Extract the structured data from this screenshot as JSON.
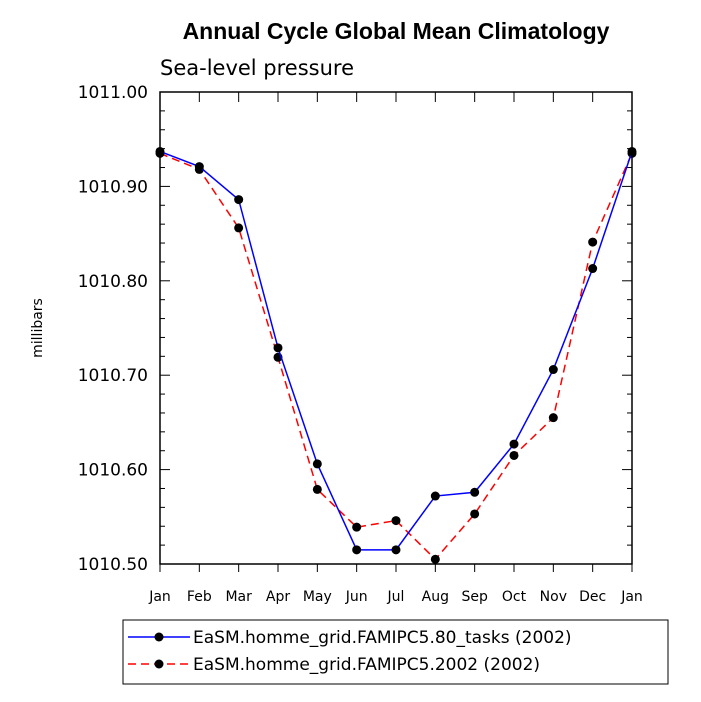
{
  "chart_data": {
    "type": "line",
    "title": "Annual Cycle Global Mean Climatology",
    "subtitle": "Sea-level pressure",
    "xlabel": "",
    "ylabel": "millibars",
    "categories": [
      "Jan",
      "Feb",
      "Mar",
      "Apr",
      "May",
      "Jun",
      "Jul",
      "Aug",
      "Sep",
      "Oct",
      "Nov",
      "Dec",
      "Jan"
    ],
    "ylim": [
      1010.5,
      1011.0
    ],
    "yticks": [
      "1010.50",
      "1010.60",
      "1010.70",
      "1010.80",
      "1010.90",
      "1011.00"
    ],
    "grid": false,
    "legend_position": "bottom",
    "series": [
      {
        "name": "EaSM.homme_grid.FAMIPC5.80_tasks (2002)",
        "color": "#0000ff",
        "dash": "solid",
        "values": [
          1010.937,
          1010.921,
          1010.886,
          1010.729,
          1010.606,
          1010.515,
          1010.515,
          1010.572,
          1010.576,
          1010.627,
          1010.706,
          1010.813,
          1010.937
        ]
      },
      {
        "name": "EaSM.homme_grid.FAMIPC5.2002 (2002)",
        "color": "#ff0000",
        "dash": "dashed",
        "values": [
          1010.935,
          1010.918,
          1010.856,
          1010.719,
          1010.579,
          1010.539,
          1010.546,
          1010.505,
          1010.553,
          1010.615,
          1010.655,
          1010.841,
          1010.935
        ]
      }
    ]
  }
}
